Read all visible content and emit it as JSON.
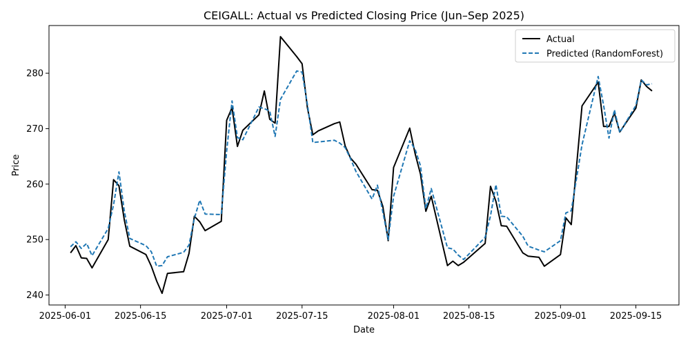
{
  "chart_data": {
    "type": "line",
    "title": "CEIGALL: Actual vs Predicted Closing Price (Jun–Sep 2025)",
    "xlabel": "Date",
    "ylabel": "Price",
    "xlim": [
      "2025-05-29",
      "2025-09-23"
    ],
    "ylim": [
      238.2,
      288.6
    ],
    "x_ticks": [
      "2025-06-01",
      "2025-06-15",
      "2025-07-01",
      "2025-07-15",
      "2025-08-01",
      "2025-08-15",
      "2025-09-01",
      "2025-09-15"
    ],
    "y_ticks": [
      240,
      250,
      260,
      270,
      280
    ],
    "grid": false,
    "legend": "top-right",
    "series": [
      {
        "name": "Actual",
        "color": "#000000",
        "style": "solid",
        "points": [
          [
            "2025-06-02",
            247.6
          ],
          [
            "2025-06-03",
            248.9
          ],
          [
            "2025-06-04",
            246.7
          ],
          [
            "2025-06-05",
            246.6
          ],
          [
            "2025-06-06",
            244.9
          ],
          [
            "2025-06-09",
            250.0
          ],
          [
            "2025-06-10",
            260.8
          ],
          [
            "2025-06-11",
            259.7
          ],
          [
            "2025-06-12",
            253.5
          ],
          [
            "2025-06-13",
            248.8
          ],
          [
            "2025-06-16",
            247.3
          ],
          [
            "2025-06-17",
            245.2
          ],
          [
            "2025-06-18",
            242.5
          ],
          [
            "2025-06-19",
            240.3
          ],
          [
            "2025-06-20",
            243.9
          ],
          [
            "2025-06-23",
            244.2
          ],
          [
            "2025-06-24",
            247.5
          ],
          [
            "2025-06-25",
            254.2
          ],
          [
            "2025-06-26",
            253.2
          ],
          [
            "2025-06-27",
            251.6
          ],
          [
            "2025-06-30",
            253.3
          ],
          [
            "2025-07-01",
            271.5
          ],
          [
            "2025-07-02",
            273.8
          ],
          [
            "2025-07-03",
            266.8
          ],
          [
            "2025-07-04",
            269.7
          ],
          [
            "2025-07-07",
            272.5
          ],
          [
            "2025-07-08",
            276.8
          ],
          [
            "2025-07-09",
            271.7
          ],
          [
            "2025-07-10",
            271.0
          ],
          [
            "2025-07-11",
            286.6
          ],
          [
            "2025-07-14",
            283.0
          ],
          [
            "2025-07-15",
            281.7
          ],
          [
            "2025-07-16",
            273.7
          ],
          [
            "2025-07-17",
            268.9
          ],
          [
            "2025-07-18",
            269.6
          ],
          [
            "2025-07-21",
            270.9
          ],
          [
            "2025-07-22",
            271.2
          ],
          [
            "2025-07-23",
            266.9
          ],
          [
            "2025-07-24",
            264.7
          ],
          [
            "2025-07-25",
            263.6
          ],
          [
            "2025-07-28",
            259.0
          ],
          [
            "2025-07-29",
            258.9
          ],
          [
            "2025-07-30",
            256.0
          ],
          [
            "2025-07-31",
            249.8
          ],
          [
            "2025-08-01",
            263.0
          ],
          [
            "2025-08-04",
            270.1
          ],
          [
            "2025-08-05",
            265.5
          ],
          [
            "2025-08-06",
            261.8
          ],
          [
            "2025-08-07",
            255.1
          ],
          [
            "2025-08-08",
            257.8
          ],
          [
            "2025-08-11",
            245.3
          ],
          [
            "2025-08-12",
            246.1
          ],
          [
            "2025-08-13",
            245.3
          ],
          [
            "2025-08-14",
            245.9
          ],
          [
            "2025-08-18",
            249.3
          ],
          [
            "2025-08-19",
            259.6
          ],
          [
            "2025-08-20",
            256.9
          ],
          [
            "2025-08-21",
            252.5
          ],
          [
            "2025-08-22",
            252.4
          ],
          [
            "2025-08-25",
            247.6
          ],
          [
            "2025-08-26",
            247.0
          ],
          [
            "2025-08-28",
            246.8
          ],
          [
            "2025-08-29",
            245.2
          ],
          [
            "2025-09-01",
            247.3
          ],
          [
            "2025-09-02",
            253.9
          ],
          [
            "2025-09-03",
            252.7
          ],
          [
            "2025-09-05",
            274.1
          ],
          [
            "2025-09-08",
            278.4
          ],
          [
            "2025-09-09",
            270.4
          ],
          [
            "2025-09-10",
            270.4
          ],
          [
            "2025-09-11",
            272.8
          ],
          [
            "2025-09-12",
            269.4
          ],
          [
            "2025-09-15",
            273.7
          ],
          [
            "2025-09-16",
            278.8
          ],
          [
            "2025-09-17",
            277.6
          ],
          [
            "2025-09-18",
            276.8
          ]
        ]
      },
      {
        "name": "Predicted (RandomForest)",
        "color": "#1f77b4",
        "style": "dashed",
        "points": [
          [
            "2025-06-02",
            248.7
          ],
          [
            "2025-06-03",
            249.6
          ],
          [
            "2025-06-04",
            248.4
          ],
          [
            "2025-06-05",
            249.3
          ],
          [
            "2025-06-06",
            247.1
          ],
          [
            "2025-06-09",
            252.0
          ],
          [
            "2025-06-10",
            256.3
          ],
          [
            "2025-06-11",
            262.2
          ],
          [
            "2025-06-12",
            255.1
          ],
          [
            "2025-06-13",
            250.2
          ],
          [
            "2025-06-16",
            248.9
          ],
          [
            "2025-06-17",
            247.8
          ],
          [
            "2025-06-18",
            245.2
          ],
          [
            "2025-06-19",
            245.3
          ],
          [
            "2025-06-20",
            246.9
          ],
          [
            "2025-06-23",
            247.7
          ],
          [
            "2025-06-24",
            249.0
          ],
          [
            "2025-06-25",
            253.8
          ],
          [
            "2025-06-26",
            257.1
          ],
          [
            "2025-06-27",
            254.6
          ],
          [
            "2025-06-30",
            254.5
          ],
          [
            "2025-07-01",
            266.0
          ],
          [
            "2025-07-02",
            275.0
          ],
          [
            "2025-07-03",
            268.4
          ],
          [
            "2025-07-04",
            268.0
          ],
          [
            "2025-07-07",
            273.9
          ],
          [
            "2025-07-08",
            273.6
          ],
          [
            "2025-07-09",
            273.2
          ],
          [
            "2025-07-10",
            268.6
          ],
          [
            "2025-07-11",
            275.3
          ],
          [
            "2025-07-14",
            280.4
          ],
          [
            "2025-07-15",
            280.2
          ],
          [
            "2025-07-16",
            274.3
          ],
          [
            "2025-07-17",
            267.5
          ],
          [
            "2025-07-18",
            267.6
          ],
          [
            "2025-07-21",
            267.9
          ],
          [
            "2025-07-22",
            267.4
          ],
          [
            "2025-07-23",
            266.6
          ],
          [
            "2025-07-24",
            264.6
          ],
          [
            "2025-07-25",
            262.3
          ],
          [
            "2025-07-28",
            257.3
          ],
          [
            "2025-07-29",
            259.8
          ],
          [
            "2025-07-30",
            255.0
          ],
          [
            "2025-07-31",
            250.0
          ],
          [
            "2025-08-01",
            257.8
          ],
          [
            "2025-08-04",
            267.8
          ],
          [
            "2025-08-05",
            266.3
          ],
          [
            "2025-08-06",
            263.3
          ],
          [
            "2025-08-07",
            255.6
          ],
          [
            "2025-08-08",
            259.2
          ],
          [
            "2025-08-11",
            248.5
          ],
          [
            "2025-08-12",
            248.3
          ],
          [
            "2025-08-13",
            247.2
          ],
          [
            "2025-08-14",
            246.4
          ],
          [
            "2025-08-18",
            250.4
          ],
          [
            "2025-08-19",
            254.3
          ],
          [
            "2025-08-20",
            259.9
          ],
          [
            "2025-08-21",
            254.2
          ],
          [
            "2025-08-22",
            254.1
          ],
          [
            "2025-08-25",
            250.6
          ],
          [
            "2025-08-26",
            248.8
          ],
          [
            "2025-08-28",
            248.1
          ],
          [
            "2025-08-29",
            247.8
          ],
          [
            "2025-09-01",
            249.8
          ],
          [
            "2025-09-02",
            254.8
          ],
          [
            "2025-09-03",
            255.2
          ],
          [
            "2025-09-05",
            267.1
          ],
          [
            "2025-09-08",
            279.4
          ],
          [
            "2025-09-09",
            274.2
          ],
          [
            "2025-09-10",
            268.3
          ],
          [
            "2025-09-11",
            273.4
          ],
          [
            "2025-09-12",
            269.3
          ],
          [
            "2025-09-15",
            274.2
          ],
          [
            "2025-09-16",
            278.8
          ],
          [
            "2025-09-17",
            277.9
          ],
          [
            "2025-09-18",
            278.1
          ]
        ]
      }
    ]
  }
}
